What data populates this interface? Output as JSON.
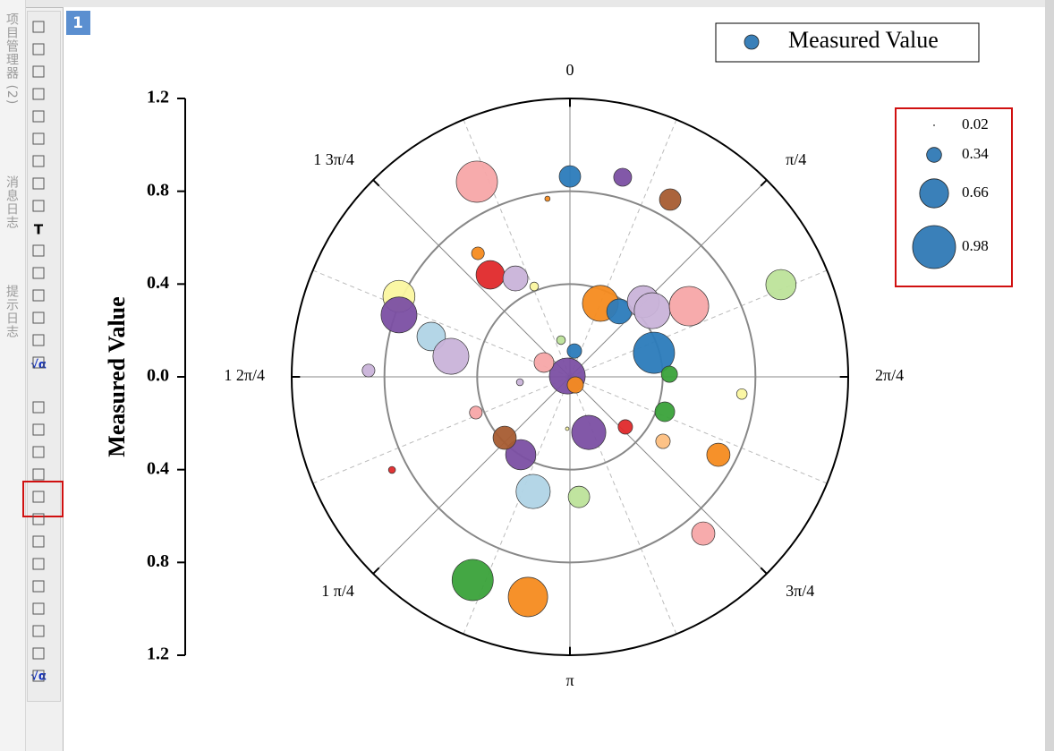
{
  "sidebar": {
    "tabs": [
      "项目管理器 (2)",
      "消息日志",
      "提示日志"
    ]
  },
  "toolbar": {
    "labels": [
      "T",
      "√α",
      "√α"
    ]
  },
  "page_tab": "1",
  "chart_data": {
    "type": "polar-bubble",
    "ylabel": "Measured Value",
    "ylim": [
      -1.2,
      1.2
    ],
    "yticks": [
      {
        "value": -1.2,
        "label": "1.2"
      },
      {
        "value": -0.8,
        "label": "0.8"
      },
      {
        "value": -0.4,
        "label": "0.4"
      },
      {
        "value": 0,
        "label": "0.0"
      },
      0.4,
      0.8,
      1.2
    ],
    "rlim": [
      0,
      1.2
    ],
    "rticks": [
      0.4,
      0.8,
      1.2
    ],
    "thetaticks": [
      0,
      {
        "value": 45,
        "label": "π/4"
      },
      {
        "value": 90,
        "label": "2π/4"
      },
      {
        "value": 135,
        "label": "3π/4"
      },
      {
        "value": 180,
        "label": "π"
      },
      {
        "value": 225,
        "label": "1 π/4"
      },
      {
        "value": 270,
        "label": "1 2π/4"
      },
      {
        "value": 315,
        "label": "1 3π/4"
      }
    ],
    "legend": "top-right",
    "series": [
      {
        "name": "Measured Value",
        "color": "#3a80b9",
        "theta": [
          0,
          14.8,
          29.5,
          334.5,
          352.8,
          66.4,
          323.3,
          322,
          331,
          338.4,
          295.2,
          289.9,
          286.2,
          279.8,
          271.8,
          22.5,
          37,
          44.3,
          51.2,
          59.3,
          74,
          88.5,
          95.7,
          110.2,
          124.7,
          117.7,
          132.1,
          161.3,
          139.6,
          175.7,
          197.8,
          212.3,
          227,
          205.6,
          190.8,
          249.2,
          242.4,
          288,
          298.9,
          9.8,
          346.3,
          146.3,
          263.9,
          183
        ],
        "r": [
          0.864,
          0.89,
          0.878,
          0.932,
          0.774,
          0.993,
          0.664,
          0.558,
          0.485,
          0.419,
          0.815,
          0.784,
          0.623,
          0.521,
          0.869,
          0.343,
          0.353,
          0.453,
          0.455,
          0.597,
          0.377,
          0.429,
          0.745,
          0.436,
          0.488,
          0.723,
          0.322,
          0.253,
          0.887,
          0.519,
          0.519,
          0.397,
          0.385,
          0.971,
          0.966,
          0.434,
          0.866,
          0.012,
          0.128,
          0.113,
          0.163,
          0.042,
          0.217,
          0.224
        ],
        "size": [
          0.49,
          0.41,
          0.49,
          0.94,
          0.12,
          0.69,
          0.29,
          0.65,
          0.57,
          0.2,
          0.73,
          0.82,
          0.65,
          0.82,
          0.29,
          0.82,
          0.57,
          0.73,
          0.82,
          0.9,
          0.94,
          0.37,
          0.24,
          0.45,
          0.33,
          0.53,
          0.33,
          0.78,
          0.53,
          0.49,
          0.78,
          0.69,
          0.53,
          0.94,
          0.9,
          0.29,
          0.16,
          0.82,
          0.45,
          0.33,
          0.2,
          0.37,
          0.16,
          0.08
        ],
        "colors": [
          "#2b7bba",
          "#7b4fa3",
          "#a65c32",
          "#f7a6a8",
          "#f58b1f",
          "#bde39a",
          "#f58b1f",
          "#e0292b",
          "#c9b3d9",
          "#fbf7a0",
          "#fbf7a0",
          "#7b4fa3",
          "#b0d4e6",
          "#c9b3d9",
          "#c9b3d9",
          "#f58b1f",
          "#2b7bba",
          "#c9b3d9",
          "#c9b3d9",
          "#f7a6a8",
          "#2b7bba",
          "#3aa23a",
          "#fbf7a0",
          "#3aa23a",
          "#fdbf80",
          "#f58b1f",
          "#e0292b",
          "#7b4fa3",
          "#f7a6a8",
          "#bde39a",
          "#b0d4e6",
          "#7b4fa3",
          "#a65c32",
          "#3aa23a",
          "#f58b1f",
          "#f7a6a8",
          "#e0292b",
          "#7b4fa3",
          "#f7a6a8",
          "#2b7bba",
          "#bde39a",
          "#f58b1f",
          "#c9b3d9",
          "#fbf7a0"
        ]
      }
    ],
    "size_legend": {
      "values": [
        0.02,
        0.34,
        0.66,
        0.98
      ],
      "color": "#3a80b9"
    }
  }
}
